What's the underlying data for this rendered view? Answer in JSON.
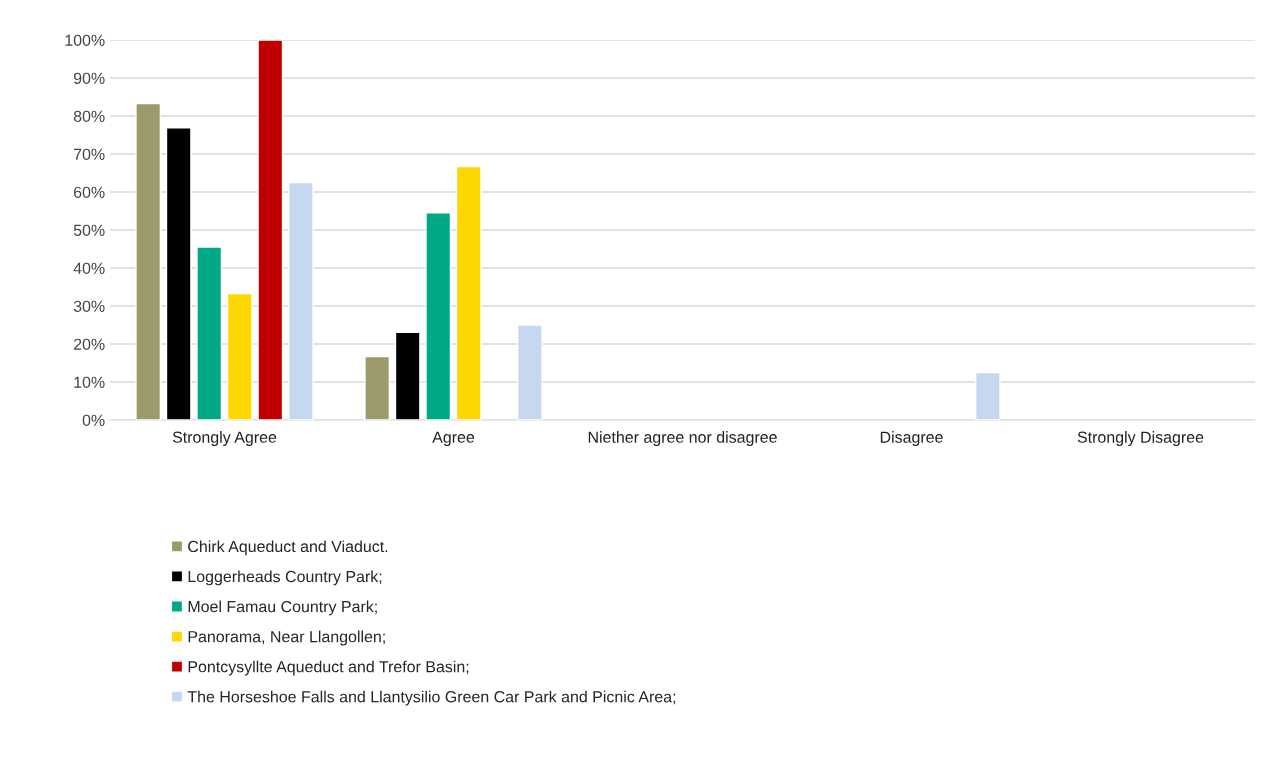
{
  "chart_data": {
    "type": "bar",
    "categories": [
      "Strongly Agree",
      "Agree",
      "Niether agree nor disagree",
      "Disagree",
      "Strongly Disagree"
    ],
    "series": [
      {
        "name": "Chirk Aqueduct and Viaduct.",
        "color": "#9c9a6a",
        "values": [
          83.3,
          16.7,
          null,
          null,
          null
        ]
      },
      {
        "name": "Loggerheads Country Park;",
        "color": "#000000",
        "values": [
          76.9,
          23.1,
          null,
          null,
          null
        ]
      },
      {
        "name": "Moel Famau Country Park;",
        "color": "#00a886",
        "values": [
          45.5,
          54.5,
          null,
          null,
          null
        ]
      },
      {
        "name": "Panorama, Near Llangollen;",
        "color": "#ffd700",
        "values": [
          33.3,
          66.7,
          null,
          null,
          null
        ]
      },
      {
        "name": "Pontcysyllte Aqueduct and Trefor Basin;",
        "color": "#c00000",
        "values": [
          100,
          null,
          null,
          null,
          null
        ]
      },
      {
        "name": "The Horseshoe Falls and Llantysilio Green Car Park and Picnic Area;",
        "color": "#c6d8ef",
        "values": [
          62.5,
          25,
          null,
          12.5,
          null
        ]
      }
    ],
    "ylim": [
      0,
      100
    ],
    "yticks": [
      {
        "value": 0,
        "label": "0%"
      },
      {
        "value": 10,
        "label": "10%"
      },
      {
        "value": 20,
        "label": "20%"
      },
      {
        "value": 30,
        "label": "30%"
      },
      {
        "value": 40,
        "label": "40%"
      },
      {
        "value": 50,
        "label": "50%"
      },
      {
        "value": 60,
        "label": "60%"
      },
      {
        "value": 70,
        "label": "70%"
      },
      {
        "value": 80,
        "label": "80%"
      },
      {
        "value": 90,
        "label": "90%"
      },
      {
        "value": 100,
        "label": "100%"
      }
    ],
    "grid": "y",
    "legend": "bottom"
  }
}
